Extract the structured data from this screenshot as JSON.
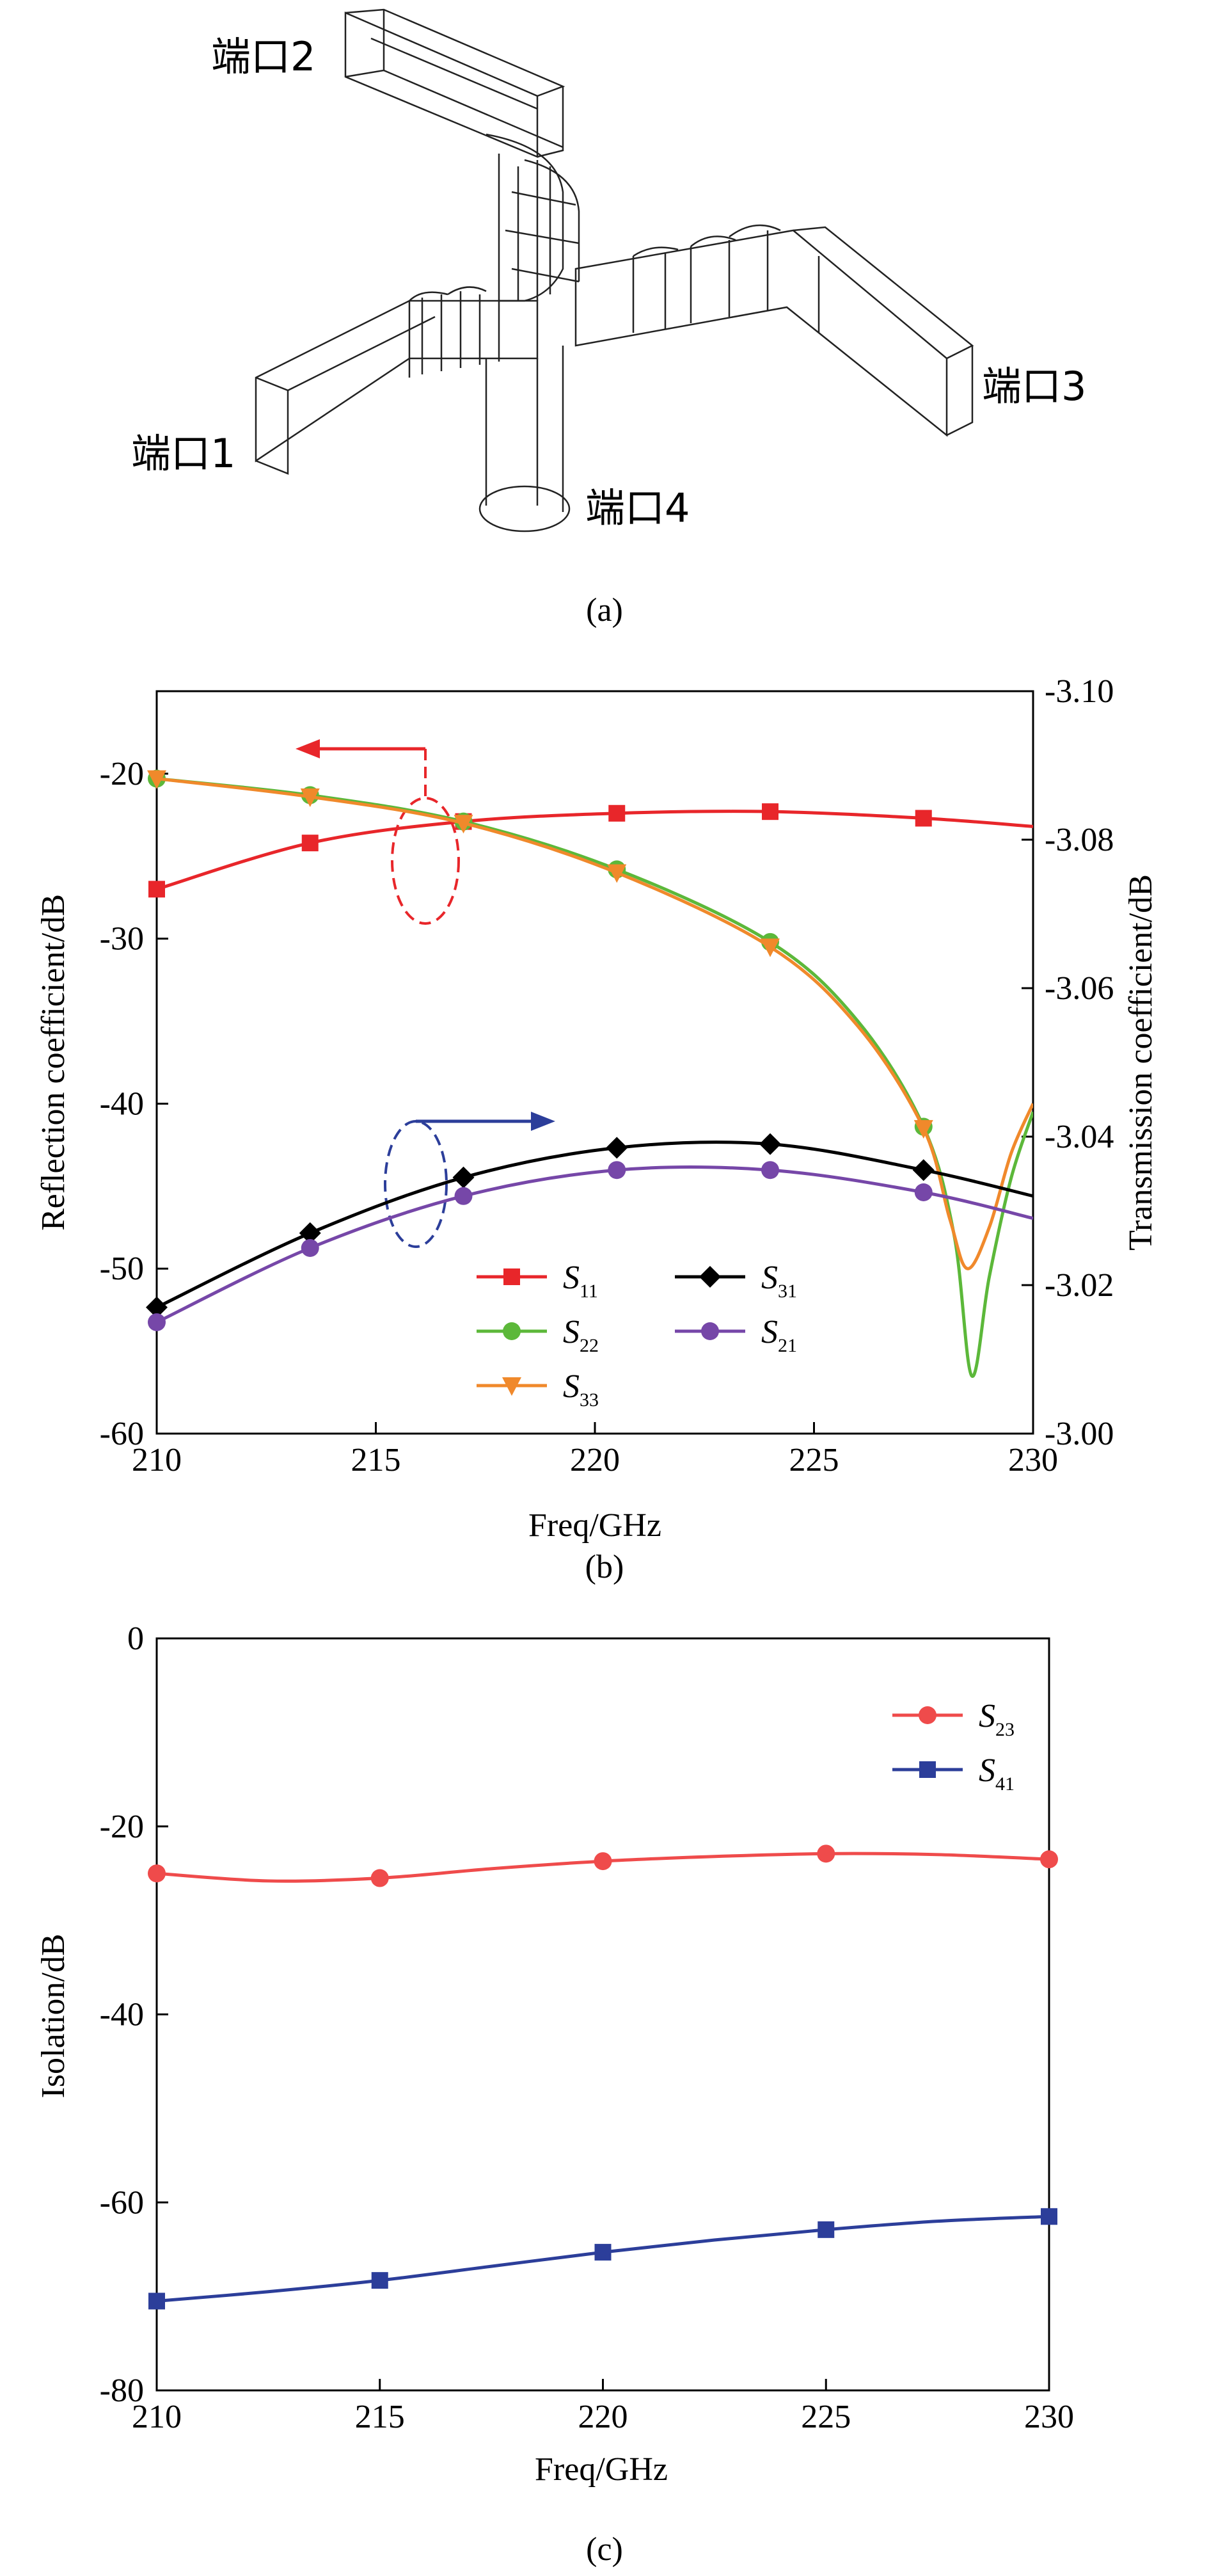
{
  "panel_a": {
    "caption": "(a)",
    "ports": [
      "端口1",
      "端口2",
      "端口3",
      "端口4"
    ]
  },
  "chart_data": [
    {
      "type": "line",
      "caption": "(b)",
      "xlabel": "Freq/GHz",
      "ylabel": "Reflection coefficient/dB",
      "y2label": "Transmission coefficient/dB",
      "xlim": [
        210,
        230
      ],
      "ylim": [
        -60,
        -15
      ],
      "y2lim": [
        -3.0,
        -3.1
      ],
      "xticks": [
        "210",
        "215",
        "220",
        "225",
        "230"
      ],
      "yticks": [
        "-60",
        "-50",
        "-40",
        "-30",
        "-20"
      ],
      "y2ticks": [
        "-3.00",
        "-3.02",
        "-3.04",
        "-3.06",
        "-3.08",
        "-3.10"
      ],
      "legend": [
        {
          "sym": "S",
          "sub": "11",
          "color": "#e8262a",
          "marker": "square"
        },
        {
          "sym": "S",
          "sub": "22",
          "color": "#5cb83a",
          "marker": "circle"
        },
        {
          "sym": "S",
          "sub": "33",
          "color": "#f0892b",
          "marker": "triangle-down"
        },
        {
          "sym": "S",
          "sub": "31",
          "color": "#000000",
          "marker": "diamond"
        },
        {
          "sym": "S",
          "sub": "21",
          "color": "#7647a8",
          "marker": "circle"
        }
      ],
      "series": [
        {
          "name": "S11",
          "axis": "left",
          "color": "#e8262a",
          "marker": "square",
          "x": [
            210,
            213.5,
            217,
            220.5,
            224,
            227.5,
            230
          ],
          "y": [
            -27.0,
            -24.2,
            -22.9,
            -22.4,
            -22.3,
            -22.7,
            -23.2
          ]
        },
        {
          "name": "S22",
          "axis": "left",
          "color": "#5cb83a",
          "marker": "circle",
          "x": [
            210,
            213.5,
            217,
            220.5,
            224,
            226,
            227.5,
            228.2,
            228.6,
            229,
            229.5,
            230
          ],
          "y": [
            -20.3,
            -21.3,
            -22.9,
            -25.8,
            -30.2,
            -35.0,
            -41.4,
            -48.0,
            -56.5,
            -50.5,
            -44.5,
            -40.5
          ]
        },
        {
          "name": "S33",
          "axis": "left",
          "color": "#f0892b",
          "marker": "triangle-down",
          "x": [
            210,
            213.5,
            217,
            220.5,
            224,
            226,
            227.5,
            228.1,
            228.5,
            229,
            229.5,
            230
          ],
          "y": [
            -20.3,
            -21.4,
            -23.0,
            -26.0,
            -30.5,
            -35.3,
            -41.5,
            -47.0,
            -50.0,
            -47.5,
            -43.0,
            -40.0
          ]
        },
        {
          "name": "S31",
          "axis": "right",
          "color": "#000000",
          "marker": "diamond",
          "x": [
            210,
            213.5,
            217,
            220.5,
            224,
            227.5,
            230
          ],
          "y": [
            -3.017,
            -3.027,
            -3.0345,
            -3.0385,
            -3.039,
            -3.0355,
            -3.032
          ]
        },
        {
          "name": "S21",
          "axis": "right",
          "color": "#7647a8",
          "marker": "circle",
          "x": [
            210,
            213.5,
            217,
            220.5,
            224,
            227.5,
            230
          ],
          "y": [
            -3.015,
            -3.025,
            -3.032,
            -3.0355,
            -3.0355,
            -3.0325,
            -3.029
          ]
        }
      ],
      "markers_x": [
        210,
        213.5,
        217,
        220.5,
        224,
        227.5
      ]
    },
    {
      "type": "line",
      "caption": "(c)",
      "xlabel": "Freq/GHz",
      "ylabel": "Isolation/dB",
      "xlim": [
        210,
        230
      ],
      "ylim": [
        -80,
        0
      ],
      "xticks": [
        "210",
        "215",
        "220",
        "225",
        "230"
      ],
      "yticks": [
        "-80",
        "-60",
        "-40",
        "-20",
        "0"
      ],
      "legend": [
        {
          "sym": "S",
          "sub": "23",
          "color": "#ef4b4b",
          "marker": "circle"
        },
        {
          "sym": "S",
          "sub": "41",
          "color": "#2c3e9a",
          "marker": "square"
        }
      ],
      "series": [
        {
          "name": "S23",
          "color": "#ef4b4b",
          "marker": "circle",
          "x": [
            210,
            212.5,
            215,
            217.5,
            220,
            222.5,
            225,
            227.5,
            230
          ],
          "y": [
            -25.0,
            -25.8,
            -25.5,
            -24.5,
            -23.7,
            -23.2,
            -22.9,
            -23.0,
            -23.5
          ]
        },
        {
          "name": "S41",
          "color": "#2c3e9a",
          "marker": "square",
          "x": [
            210,
            212.5,
            215,
            217.5,
            220,
            222.5,
            225,
            227.5,
            230
          ],
          "y": [
            -70.5,
            -69.5,
            -68.3,
            -66.8,
            -65.3,
            -64.0,
            -62.9,
            -62.0,
            -61.5
          ]
        }
      ],
      "markers_x": [
        210,
        215,
        220,
        225,
        230
      ]
    }
  ]
}
